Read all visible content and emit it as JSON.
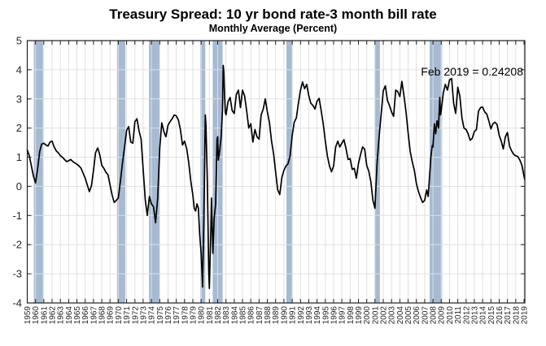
{
  "chart_data": {
    "type": "line",
    "title": "Treasury Spread: 10 yr bond rate-3 month bill rate",
    "subtitle": "Monthly Average (Percent)",
    "annotation": "Feb 2019 = 0.24208",
    "latest_point": {
      "label": "Feb 2019",
      "value": 0.24208
    },
    "xlim": [
      1959,
      2019.1
    ],
    "ylim": [
      -4,
      5
    ],
    "grid": true,
    "legend": "none",
    "x_ticks": [
      1959,
      1960,
      1961,
      1962,
      1963,
      1964,
      1965,
      1966,
      1967,
      1968,
      1969,
      1970,
      1971,
      1972,
      1973,
      1974,
      1975,
      1976,
      1977,
      1978,
      1979,
      1980,
      1981,
      1982,
      1983,
      1984,
      1985,
      1986,
      1987,
      1988,
      1989,
      1990,
      1991,
      1992,
      1993,
      1994,
      1995,
      1996,
      1997,
      1998,
      1999,
      2000,
      2001,
      2002,
      2003,
      2004,
      2005,
      2006,
      2007,
      2008,
      2009,
      2010,
      2011,
      2012,
      2013,
      2014,
      2015,
      2016,
      2017,
      2018,
      2019
    ],
    "y_ticks": [
      5,
      4,
      3,
      2,
      1,
      0,
      -1,
      -2,
      -3,
      -4
    ],
    "colors": {
      "line": "#000000",
      "recession_band": "#a6bad2",
      "grid": "#e0e0e0",
      "axis": "#1f1f1f",
      "label": "#262626",
      "background": "#ffffff"
    },
    "recessions": [
      [
        1959.8,
        1960.9
      ],
      [
        1969.85,
        1970.85
      ],
      [
        1973.7,
        1975.0
      ],
      [
        1979.9,
        1980.5
      ],
      [
        1981.4,
        1982.6
      ],
      [
        1990.3,
        1991.05
      ],
      [
        2000.95,
        2001.6
      ],
      [
        2007.6,
        2009.1
      ]
    ],
    "series": [
      {
        "name": "10 yr bond rate minus 3 month bill rate",
        "units": "percent",
        "resolution": "monthly (approximated)",
        "points": [
          [
            1959,
            1.25
          ],
          [
            1959.25,
            1.05
          ],
          [
            1959.5,
            0.7
          ],
          [
            1959.75,
            0.35
          ],
          [
            1960,
            0.12
          ],
          [
            1960.25,
            0.6
          ],
          [
            1960.5,
            1.2
          ],
          [
            1960.75,
            1.45
          ],
          [
            1961,
            1.48
          ],
          [
            1961.25,
            1.42
          ],
          [
            1961.5,
            1.38
          ],
          [
            1961.75,
            1.52
          ],
          [
            1962,
            1.55
          ],
          [
            1962.25,
            1.35
          ],
          [
            1962.5,
            1.22
          ],
          [
            1962.75,
            1.15
          ],
          [
            1963,
            1.05
          ],
          [
            1963.25,
            1.0
          ],
          [
            1963.5,
            0.92
          ],
          [
            1963.75,
            0.85
          ],
          [
            1964,
            0.88
          ],
          [
            1964.25,
            0.92
          ],
          [
            1964.5,
            0.85
          ],
          [
            1964.75,
            0.8
          ],
          [
            1965,
            0.76
          ],
          [
            1965.25,
            0.7
          ],
          [
            1965.5,
            0.62
          ],
          [
            1965.75,
            0.45
          ],
          [
            1966,
            0.28
          ],
          [
            1966.25,
            0.05
          ],
          [
            1966.5,
            -0.18
          ],
          [
            1966.75,
            0.02
          ],
          [
            1967,
            0.55
          ],
          [
            1967.25,
            1.15
          ],
          [
            1967.5,
            1.32
          ],
          [
            1967.75,
            1.1
          ],
          [
            1968,
            0.72
          ],
          [
            1968.25,
            0.62
          ],
          [
            1968.5,
            0.48
          ],
          [
            1968.75,
            0.4
          ],
          [
            1969,
            0.05
          ],
          [
            1969.25,
            -0.3
          ],
          [
            1969.5,
            -0.55
          ],
          [
            1969.75,
            -0.48
          ],
          [
            1970,
            -0.4
          ],
          [
            1970.25,
            0.18
          ],
          [
            1970.5,
            0.8
          ],
          [
            1970.75,
            1.35
          ],
          [
            1971,
            1.92
          ],
          [
            1971.25,
            2.05
          ],
          [
            1971.5,
            1.52
          ],
          [
            1971.75,
            1.48
          ],
          [
            1972,
            2.22
          ],
          [
            1972.25,
            2.32
          ],
          [
            1972.5,
            1.9
          ],
          [
            1972.75,
            1.62
          ],
          [
            1973,
            0.6
          ],
          [
            1973.25,
            -0.45
          ],
          [
            1973.5,
            -1.0
          ],
          [
            1973.75,
            -0.35
          ],
          [
            1974,
            -0.6
          ],
          [
            1974.25,
            -0.7
          ],
          [
            1974.5,
            -1.25
          ],
          [
            1974.75,
            -0.4
          ],
          [
            1975,
            1.3
          ],
          [
            1975.25,
            2.18
          ],
          [
            1975.5,
            1.88
          ],
          [
            1975.75,
            1.7
          ],
          [
            1976,
            2.1
          ],
          [
            1976.25,
            2.22
          ],
          [
            1976.5,
            2.32
          ],
          [
            1976.75,
            2.45
          ],
          [
            1977,
            2.42
          ],
          [
            1977.25,
            2.28
          ],
          [
            1977.5,
            1.95
          ],
          [
            1977.75,
            1.42
          ],
          [
            1978,
            1.55
          ],
          [
            1978.25,
            1.3
          ],
          [
            1978.5,
            0.82
          ],
          [
            1978.75,
            0.18
          ],
          [
            1979,
            -0.3
          ],
          [
            1979.17,
            -0.75
          ],
          [
            1979.33,
            -0.85
          ],
          [
            1979.5,
            -0.6
          ],
          [
            1979.67,
            -0.75
          ],
          [
            1979.83,
            -1.65
          ],
          [
            1980,
            -2.3
          ],
          [
            1980.17,
            -3.45
          ],
          [
            1980.33,
            -1.2
          ],
          [
            1980.5,
            2.45
          ],
          [
            1980.58,
            2.1
          ],
          [
            1980.75,
            0.2
          ],
          [
            1980.92,
            -2.9
          ],
          [
            1981,
            -3.5
          ],
          [
            1981.17,
            -1.5
          ],
          [
            1981.25,
            -0.4
          ],
          [
            1981.42,
            -2.3
          ],
          [
            1981.58,
            -1.1
          ],
          [
            1981.75,
            -0.6
          ],
          [
            1981.92,
            1.6
          ],
          [
            1982,
            1.7
          ],
          [
            1982.08,
            0.9
          ],
          [
            1982.25,
            1.25
          ],
          [
            1982.42,
            1.7
          ],
          [
            1982.58,
            2.6
          ],
          [
            1982.67,
            4.15
          ],
          [
            1982.75,
            3.95
          ],
          [
            1982.83,
            3.1
          ],
          [
            1982.92,
            2.55
          ],
          [
            1983,
            2.45
          ],
          [
            1983.25,
            2.9
          ],
          [
            1983.5,
            3.05
          ],
          [
            1983.75,
            2.6
          ],
          [
            1984,
            2.5
          ],
          [
            1984.25,
            3.15
          ],
          [
            1984.5,
            3.3
          ],
          [
            1984.75,
            2.7
          ],
          [
            1985,
            3.3
          ],
          [
            1985.25,
            3.1
          ],
          [
            1985.5,
            2.6
          ],
          [
            1985.75,
            2.0
          ],
          [
            1986,
            2.15
          ],
          [
            1986.25,
            1.52
          ],
          [
            1986.5,
            1.95
          ],
          [
            1986.75,
            1.7
          ],
          [
            1987,
            1.62
          ],
          [
            1987.25,
            2.45
          ],
          [
            1987.5,
            2.65
          ],
          [
            1987.75,
            3.0
          ],
          [
            1988,
            2.55
          ],
          [
            1988.25,
            2.2
          ],
          [
            1988.5,
            1.55
          ],
          [
            1988.75,
            1.12
          ],
          [
            1989,
            0.5
          ],
          [
            1989.25,
            -0.12
          ],
          [
            1989.5,
            -0.28
          ],
          [
            1989.75,
            0.3
          ],
          [
            1990,
            0.55
          ],
          [
            1990.25,
            0.7
          ],
          [
            1990.5,
            0.78
          ],
          [
            1990.75,
            1.05
          ],
          [
            1991,
            1.75
          ],
          [
            1991.25,
            2.2
          ],
          [
            1991.5,
            2.35
          ],
          [
            1991.75,
            2.85
          ],
          [
            1992,
            3.3
          ],
          [
            1992.25,
            3.58
          ],
          [
            1992.5,
            3.35
          ],
          [
            1992.75,
            3.5
          ],
          [
            1993,
            3.12
          ],
          [
            1993.25,
            2.85
          ],
          [
            1993.5,
            2.78
          ],
          [
            1993.75,
            2.65
          ],
          [
            1994,
            2.92
          ],
          [
            1994.25,
            3.02
          ],
          [
            1994.5,
            2.6
          ],
          [
            1994.75,
            2.15
          ],
          [
            1995,
            1.55
          ],
          [
            1995.25,
            1.05
          ],
          [
            1995.5,
            0.7
          ],
          [
            1995.75,
            0.5
          ],
          [
            1996,
            0.7
          ],
          [
            1996.25,
            1.35
          ],
          [
            1996.5,
            1.55
          ],
          [
            1996.75,
            1.35
          ],
          [
            1997,
            1.48
          ],
          [
            1997.25,
            1.6
          ],
          [
            1997.5,
            1.3
          ],
          [
            1997.75,
            0.92
          ],
          [
            1998,
            0.95
          ],
          [
            1998.25,
            0.58
          ],
          [
            1998.5,
            0.62
          ],
          [
            1998.75,
            0.28
          ],
          [
            1999,
            0.78
          ],
          [
            1999.25,
            1.08
          ],
          [
            1999.5,
            1.35
          ],
          [
            1999.75,
            1.28
          ],
          [
            2000,
            0.72
          ],
          [
            2000.25,
            0.52
          ],
          [
            2000.5,
            0.15
          ],
          [
            2000.75,
            -0.48
          ],
          [
            2001,
            -0.75
          ],
          [
            2001.25,
            0.8
          ],
          [
            2001.5,
            1.7
          ],
          [
            2001.75,
            2.5
          ],
          [
            2002,
            3.28
          ],
          [
            2002.25,
            3.45
          ],
          [
            2002.5,
            2.95
          ],
          [
            2002.75,
            2.78
          ],
          [
            2003,
            2.55
          ],
          [
            2003.25,
            2.4
          ],
          [
            2003.5,
            3.3
          ],
          [
            2003.75,
            3.25
          ],
          [
            2004,
            3.08
          ],
          [
            2004.25,
            3.6
          ],
          [
            2004.5,
            3.12
          ],
          [
            2004.75,
            2.55
          ],
          [
            2005,
            1.85
          ],
          [
            2005.25,
            1.2
          ],
          [
            2005.5,
            0.85
          ],
          [
            2005.75,
            0.55
          ],
          [
            2006,
            0.1
          ],
          [
            2006.25,
            -0.18
          ],
          [
            2006.5,
            -0.38
          ],
          [
            2006.75,
            -0.55
          ],
          [
            2007,
            -0.48
          ],
          [
            2007.25,
            -0.12
          ],
          [
            2007.42,
            -0.35
          ],
          [
            2007.58,
            0.3
          ],
          [
            2007.75,
            1.0
          ],
          [
            2007.92,
            1.4
          ],
          [
            2008,
            1.35
          ],
          [
            2008.17,
            2.15
          ],
          [
            2008.33,
            1.8
          ],
          [
            2008.5,
            2.25
          ],
          [
            2008.67,
            2.0
          ],
          [
            2008.83,
            3.05
          ],
          [
            2008.92,
            2.45
          ],
          [
            2009,
            2.6
          ],
          [
            2009.25,
            3.2
          ],
          [
            2009.5,
            3.5
          ],
          [
            2009.75,
            3.3
          ],
          [
            2010,
            3.65
          ],
          [
            2010.25,
            3.7
          ],
          [
            2010.5,
            2.85
          ],
          [
            2010.75,
            2.5
          ],
          [
            2011,
            3.4
          ],
          [
            2011.25,
            3.1
          ],
          [
            2011.5,
            2.35
          ],
          [
            2011.75,
            2.0
          ],
          [
            2012,
            1.95
          ],
          [
            2012.25,
            1.8
          ],
          [
            2012.5,
            1.58
          ],
          [
            2012.75,
            1.65
          ],
          [
            2013,
            1.88
          ],
          [
            2013.25,
            1.95
          ],
          [
            2013.5,
            2.58
          ],
          [
            2013.75,
            2.7
          ],
          [
            2014,
            2.72
          ],
          [
            2014.25,
            2.55
          ],
          [
            2014.5,
            2.48
          ],
          [
            2014.75,
            2.25
          ],
          [
            2015,
            1.97
          ],
          [
            2015.25,
            2.15
          ],
          [
            2015.5,
            2.2
          ],
          [
            2015.75,
            2.12
          ],
          [
            2016,
            1.75
          ],
          [
            2016.25,
            1.55
          ],
          [
            2016.5,
            1.28
          ],
          [
            2016.75,
            1.7
          ],
          [
            2017,
            1.85
          ],
          [
            2017.25,
            1.38
          ],
          [
            2017.5,
            1.22
          ],
          [
            2017.75,
            1.1
          ],
          [
            2018,
            1.05
          ],
          [
            2018.25,
            1.02
          ],
          [
            2018.5,
            0.9
          ],
          [
            2018.75,
            0.72
          ],
          [
            2019,
            0.35
          ],
          [
            2019.083,
            0.24208
          ]
        ]
      }
    ]
  }
}
